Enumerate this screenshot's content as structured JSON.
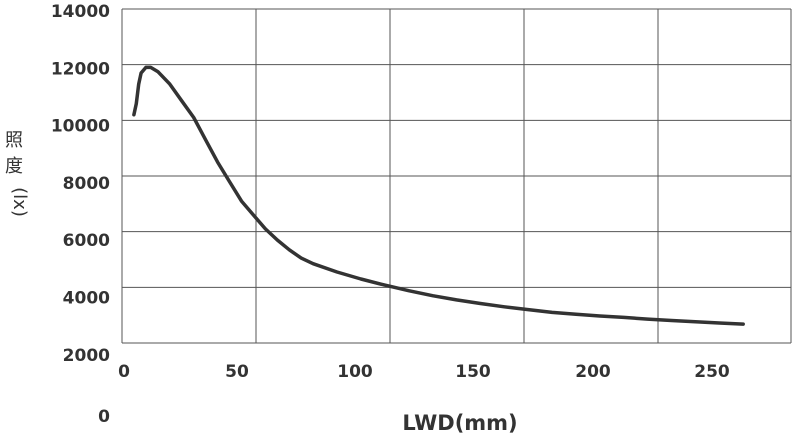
{
  "chart_data": {
    "type": "line",
    "title": "",
    "xlabel": "LWD(mm)",
    "ylabel": "照度(lx)",
    "ylabel_chars": [
      "照",
      "度"
    ],
    "ylabel_unit": "(lx)",
    "x_ticks": [
      "0",
      "50",
      "100",
      "150",
      "200",
      "250"
    ],
    "y_ticks": [
      "14000",
      "12000",
      "10000",
      "8000",
      "6000",
      "4000",
      "2000"
    ],
    "y_zero_label": "0",
    "xlim": [
      0,
      280
    ],
    "ylim": [
      2000,
      14000
    ],
    "grid": true,
    "colors": {
      "line": "#333333",
      "grid": "#555555",
      "text": "#333333"
    },
    "series": [
      {
        "x": [
          5,
          6,
          7,
          8,
          10,
          12,
          15,
          20,
          25,
          30,
          35,
          40,
          45,
          50,
          55,
          60,
          65,
          70,
          75,
          80,
          90,
          100,
          110,
          120,
          130,
          140,
          150,
          160,
          170,
          180,
          190,
          200,
          210,
          220,
          230,
          240,
          250,
          260
        ],
        "y": [
          10200,
          10600,
          11300,
          11700,
          11900,
          11900,
          11750,
          11300,
          10700,
          10100,
          9300,
          8500,
          7800,
          7100,
          6600,
          6100,
          5700,
          5350,
          5050,
          4850,
          4550,
          4300,
          4080,
          3880,
          3700,
          3550,
          3420,
          3300,
          3200,
          3100,
          3030,
          2970,
          2920,
          2860,
          2810,
          2760,
          2720,
          2680
        ]
      }
    ]
  }
}
